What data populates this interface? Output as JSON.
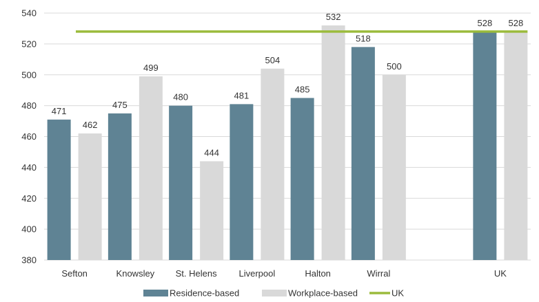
{
  "chart_data": {
    "type": "bar",
    "categories": [
      "Sefton",
      "Knowsley",
      "St. Helens",
      "Liverpool",
      "Halton",
      "Wirral",
      "",
      "UK"
    ],
    "series": [
      {
        "name": "Residence-based",
        "values": [
          471,
          475,
          480,
          481,
          485,
          518,
          null,
          528
        ]
      },
      {
        "name": "Workplace-based",
        "values": [
          462,
          499,
          444,
          504,
          532,
          500,
          null,
          528
        ]
      }
    ],
    "reference_line": {
      "name": "UK",
      "value": 528
    },
    "y_ticks": [
      "380",
      "400",
      "420",
      "440",
      "460",
      "480",
      "500",
      "520",
      "540"
    ],
    "ylim": [
      380,
      540
    ],
    "grid": true,
    "legend": "bottom",
    "colors": {
      "residence": "#5f8394",
      "workplace": "#d9d9d9",
      "uk_line": "#9bbb3c",
      "grid": "#d9d9d9"
    }
  }
}
